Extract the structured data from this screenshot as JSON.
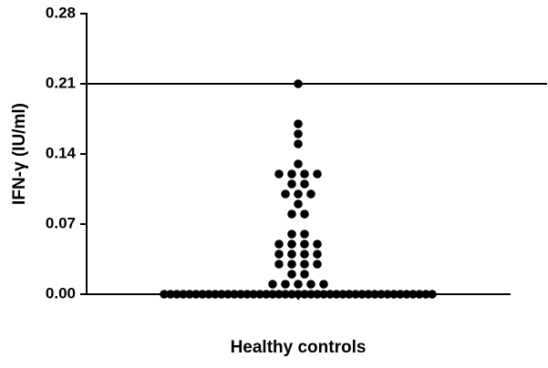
{
  "chart_data": {
    "type": "dot",
    "y_label": "IFN-γ (IU/ml)",
    "category": "Healthy controls",
    "color": "#000000",
    "reference_line": 0.21,
    "ylim": [
      0,
      0.28
    ],
    "yticks": [
      {
        "value": 0,
        "label": "0.00"
      },
      0.07,
      0.14,
      0.21,
      0.28
    ],
    "grid": false,
    "values": [
      0.21,
      0.17,
      0.16,
      0.15,
      0.13,
      0.12,
      0.12,
      0.12,
      0.12,
      0.11,
      0.11,
      0.1,
      0.1,
      0.1,
      0.09,
      0.08,
      0.08,
      0.06,
      0.06,
      0.05,
      0.05,
      0.05,
      0.05,
      0.04,
      0.04,
      0.04,
      0.04,
      0.03,
      0.03,
      0.03,
      0.03,
      0.02,
      0.02,
      0.01,
      0.01,
      0.01,
      0.01,
      0.01,
      0,
      0,
      0,
      0,
      0,
      0,
      0,
      0,
      0,
      0,
      0,
      0,
      0,
      0,
      0,
      0,
      0,
      0,
      0,
      0,
      0,
      0,
      0,
      0,
      0,
      0,
      0,
      0,
      0,
      0,
      0,
      0,
      0,
      0,
      0,
      0,
      0,
      0,
      0,
      0,
      0,
      0,
      0
    ]
  }
}
